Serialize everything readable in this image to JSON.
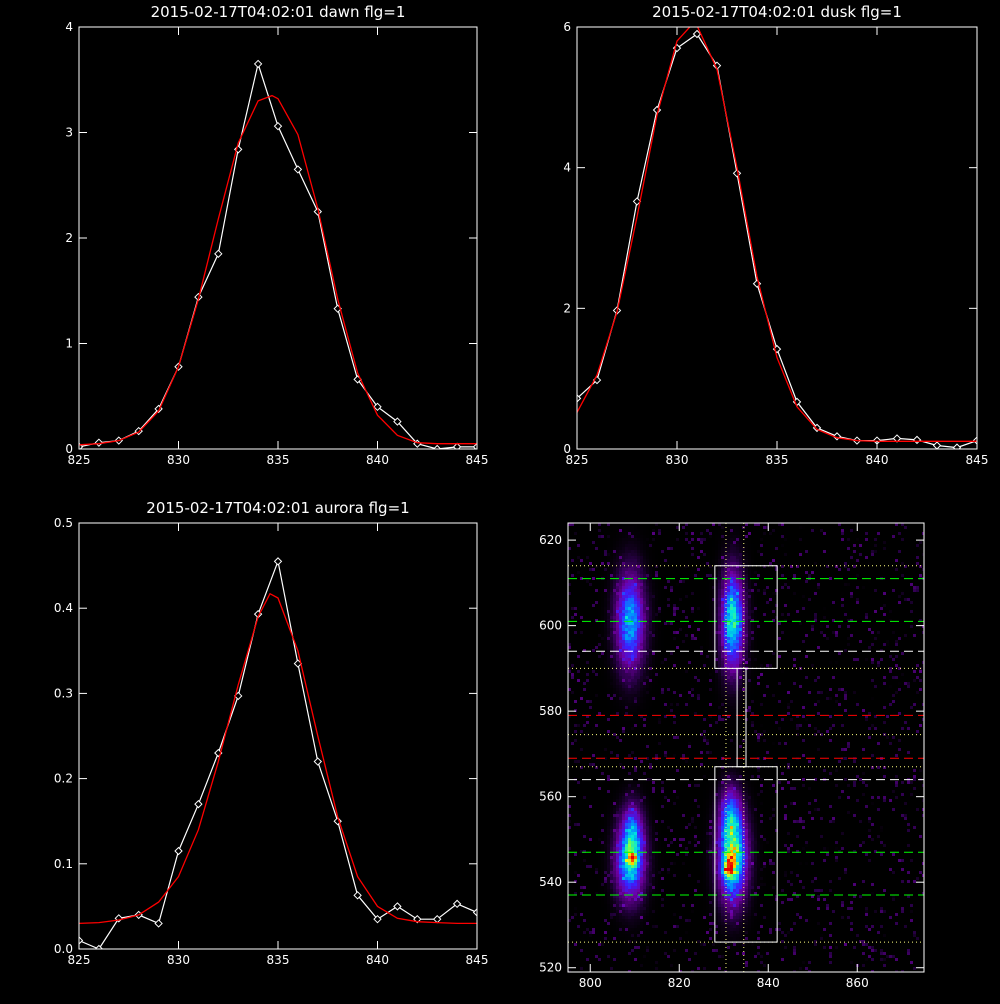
{
  "colors": {
    "background": "#000000",
    "axes": "#ffffff",
    "data_line": "#ffffff",
    "fit_line": "#ff0000",
    "green_lines": "#00ff00",
    "red_lines": "#ff0000",
    "white_lines": "#ffffff",
    "dotted_lines": "#ffff80"
  },
  "chart_data": [
    {
      "type": "line",
      "title": "2015-02-17T04:02:01 dawn flg=1",
      "xlim": [
        825,
        845
      ],
      "ylim": [
        0,
        4
      ],
      "xticks": [
        825,
        830,
        835,
        840,
        845
      ],
      "yticks": [
        0,
        1,
        2,
        3,
        4
      ],
      "xtick_labels": [
        "825",
        "830",
        "835",
        "840",
        "845"
      ],
      "ytick_labels": [
        "0",
        "1",
        "2",
        "3",
        "4"
      ],
      "series": [
        {
          "role": "data",
          "color": "#ffffff",
          "marker": "diamond",
          "x": [
            825,
            826,
            827,
            828,
            829,
            830,
            831,
            832,
            833,
            834,
            835,
            836,
            837,
            838,
            839,
            840,
            841,
            842,
            843,
            844,
            845
          ],
          "y": [
            0.02,
            0.06,
            0.08,
            0.17,
            0.38,
            0.78,
            1.44,
            1.85,
            2.84,
            3.65,
            3.06,
            2.65,
            2.25,
            1.33,
            0.66,
            0.4,
            0.26,
            0.05,
            0.0,
            0.02,
            0.02
          ]
        },
        {
          "role": "fit",
          "color": "#ff0000",
          "x": [
            825,
            826,
            827,
            828,
            829,
            830,
            831,
            832,
            833,
            834,
            834.7,
            835,
            836,
            837,
            838,
            839,
            840,
            841,
            842,
            843,
            844,
            845
          ],
          "y": [
            0.04,
            0.05,
            0.08,
            0.16,
            0.36,
            0.78,
            1.42,
            2.18,
            2.9,
            3.3,
            3.35,
            3.32,
            2.98,
            2.28,
            1.42,
            0.72,
            0.32,
            0.13,
            0.06,
            0.05,
            0.05,
            0.05
          ]
        }
      ]
    },
    {
      "type": "line",
      "title": "2015-02-17T04:02:01 dusk flg=1",
      "xlim": [
        825,
        845
      ],
      "ylim": [
        0,
        6
      ],
      "xticks": [
        825,
        830,
        835,
        840,
        845
      ],
      "yticks": [
        0,
        2,
        4,
        6
      ],
      "xtick_labels": [
        "825",
        "830",
        "835",
        "840",
        "845"
      ],
      "ytick_labels": [
        "0",
        "2",
        "4",
        "6"
      ],
      "series": [
        {
          "role": "data",
          "color": "#ffffff",
          "marker": "diamond",
          "x": [
            825,
            826,
            827,
            828,
            829,
            830,
            831,
            832,
            833,
            834,
            835,
            836,
            837,
            838,
            839,
            840,
            841,
            842,
            843,
            844,
            845
          ],
          "y": [
            0.72,
            0.98,
            1.97,
            3.52,
            4.82,
            5.7,
            5.9,
            5.45,
            3.92,
            2.35,
            1.42,
            0.67,
            0.3,
            0.18,
            0.12,
            0.12,
            0.15,
            0.13,
            0.05,
            0.02,
            0.12
          ]
        },
        {
          "role": "fit",
          "color": "#ff0000",
          "x": [
            825,
            826,
            827,
            828,
            829,
            830,
            830.8,
            831,
            832,
            833,
            834,
            835,
            836,
            837,
            838,
            839,
            840,
            841,
            842,
            843,
            844,
            845
          ],
          "y": [
            0.52,
            1.05,
            1.95,
            3.3,
            4.75,
            5.8,
            6.05,
            6.02,
            5.4,
            4.0,
            2.45,
            1.3,
            0.6,
            0.28,
            0.16,
            0.12,
            0.11,
            0.11,
            0.11,
            0.11,
            0.11,
            0.11
          ]
        }
      ]
    },
    {
      "type": "line",
      "title": "2015-02-17T04:02:01 aurora flg=1",
      "xlim": [
        825,
        845
      ],
      "ylim": [
        0,
        0.5
      ],
      "xticks": [
        825,
        830,
        835,
        840,
        845
      ],
      "yticks": [
        0,
        0.1,
        0.2,
        0.3,
        0.4,
        0.5
      ],
      "xtick_labels": [
        "825",
        "830",
        "835",
        "840",
        "845"
      ],
      "ytick_labels": [
        "0.0",
        "0.1",
        "0.2",
        "0.3",
        "0.4",
        "0.5"
      ],
      "series": [
        {
          "role": "data",
          "color": "#ffffff",
          "marker": "diamond",
          "x": [
            825,
            826,
            827,
            828,
            829,
            830,
            831,
            832,
            833,
            834,
            835,
            836,
            837,
            838,
            839,
            840,
            841,
            842,
            843,
            844,
            845
          ],
          "y": [
            0.01,
            0.0,
            0.036,
            0.04,
            0.03,
            0.115,
            0.17,
            0.23,
            0.297,
            0.393,
            0.455,
            0.335,
            0.22,
            0.15,
            0.063,
            0.035,
            0.05,
            0.035,
            0.035,
            0.053,
            0.043
          ]
        },
        {
          "role": "fit",
          "color": "#ff0000",
          "x": [
            825,
            826,
            827,
            828,
            829,
            830,
            831,
            832,
            833,
            834,
            834.6,
            835,
            836,
            837,
            838,
            839,
            840,
            841,
            842,
            843,
            844,
            845
          ],
          "y": [
            0.03,
            0.031,
            0.034,
            0.04,
            0.055,
            0.085,
            0.14,
            0.22,
            0.31,
            0.39,
            0.417,
            0.412,
            0.35,
            0.25,
            0.155,
            0.085,
            0.05,
            0.036,
            0.032,
            0.031,
            0.03,
            0.03
          ]
        }
      ]
    },
    {
      "type": "heatmap",
      "xlim": [
        795,
        875
      ],
      "ylim": [
        519,
        624
      ],
      "xticks": [
        800,
        820,
        840,
        860
      ],
      "yticks": [
        520,
        540,
        560,
        580,
        600,
        620
      ],
      "xtick_labels": [
        "800",
        "820",
        "840",
        "860"
      ],
      "ytick_labels": [
        "520",
        "540",
        "560",
        "580",
        "600",
        "620"
      ],
      "blobs": [
        {
          "x": 809,
          "y": 601,
          "sx": 2.0,
          "sy": 7.0,
          "amp": 0.5
        },
        {
          "x": 809,
          "y": 545,
          "sx": 2.0,
          "sy": 5.5,
          "amp": 0.6
        },
        {
          "x": 809.5,
          "y": 552,
          "sx": 1.5,
          "sy": 4.0,
          "amp": 0.28
        },
        {
          "x": 809.5,
          "y": 545.5,
          "sx": 0.6,
          "sy": 0.7,
          "amp": 0.45
        },
        {
          "x": 832,
          "y": 601,
          "sx": 1.6,
          "sy": 7.0,
          "amp": 0.62
        },
        {
          "x": 832,
          "y": 546,
          "sx": 2.0,
          "sy": 6.5,
          "amp": 0.75
        },
        {
          "x": 831.5,
          "y": 556,
          "sx": 1.5,
          "sy": 4.0,
          "amp": 0.32
        },
        {
          "x": 831,
          "y": 543,
          "sx": 0.8,
          "sy": 1.2,
          "amp": 0.5
        },
        {
          "x": 831.5,
          "y": 546,
          "sx": 0.6,
          "sy": 0.8,
          "amp": 0.2
        }
      ],
      "h_lines": [
        {
          "y": 611,
          "color": "#00ff00",
          "style": "dashed"
        },
        {
          "y": 601,
          "color": "#00ff00",
          "style": "dashed"
        },
        {
          "y": 594,
          "color": "#ffffff",
          "style": "dashed"
        },
        {
          "y": 579,
          "color": "#ff0000",
          "style": "dashed"
        },
        {
          "y": 569,
          "color": "#ff0000",
          "style": "dashed"
        },
        {
          "y": 564,
          "color": "#ffffff",
          "style": "dashed"
        },
        {
          "y": 547,
          "color": "#00ff00",
          "style": "dashed"
        },
        {
          "y": 537,
          "color": "#00ff00",
          "style": "dashed"
        },
        {
          "y": 614,
          "color": "#ffff80",
          "style": "dotted"
        },
        {
          "y": 590,
          "color": "#ffff80",
          "style": "dotted"
        },
        {
          "y": 574.5,
          "color": "#ffff80",
          "style": "dotted"
        },
        {
          "y": 567,
          "color": "#ffff80",
          "style": "dotted"
        },
        {
          "y": 526,
          "color": "#ffff80",
          "style": "dotted"
        }
      ],
      "v_lines": [
        {
          "x": 830.5,
          "color": "#ffff80",
          "style": "dotted"
        },
        {
          "x": 834.5,
          "color": "#ffff80",
          "style": "dotted"
        }
      ],
      "boxes": [
        {
          "x0": 828,
          "x1": 842,
          "y0": 590,
          "y1": 614
        },
        {
          "x0": 828,
          "x1": 842,
          "y0": 526,
          "y1": 567
        },
        {
          "x0": 833,
          "x1": 835,
          "y0": 567,
          "y1": 590
        }
      ]
    }
  ]
}
